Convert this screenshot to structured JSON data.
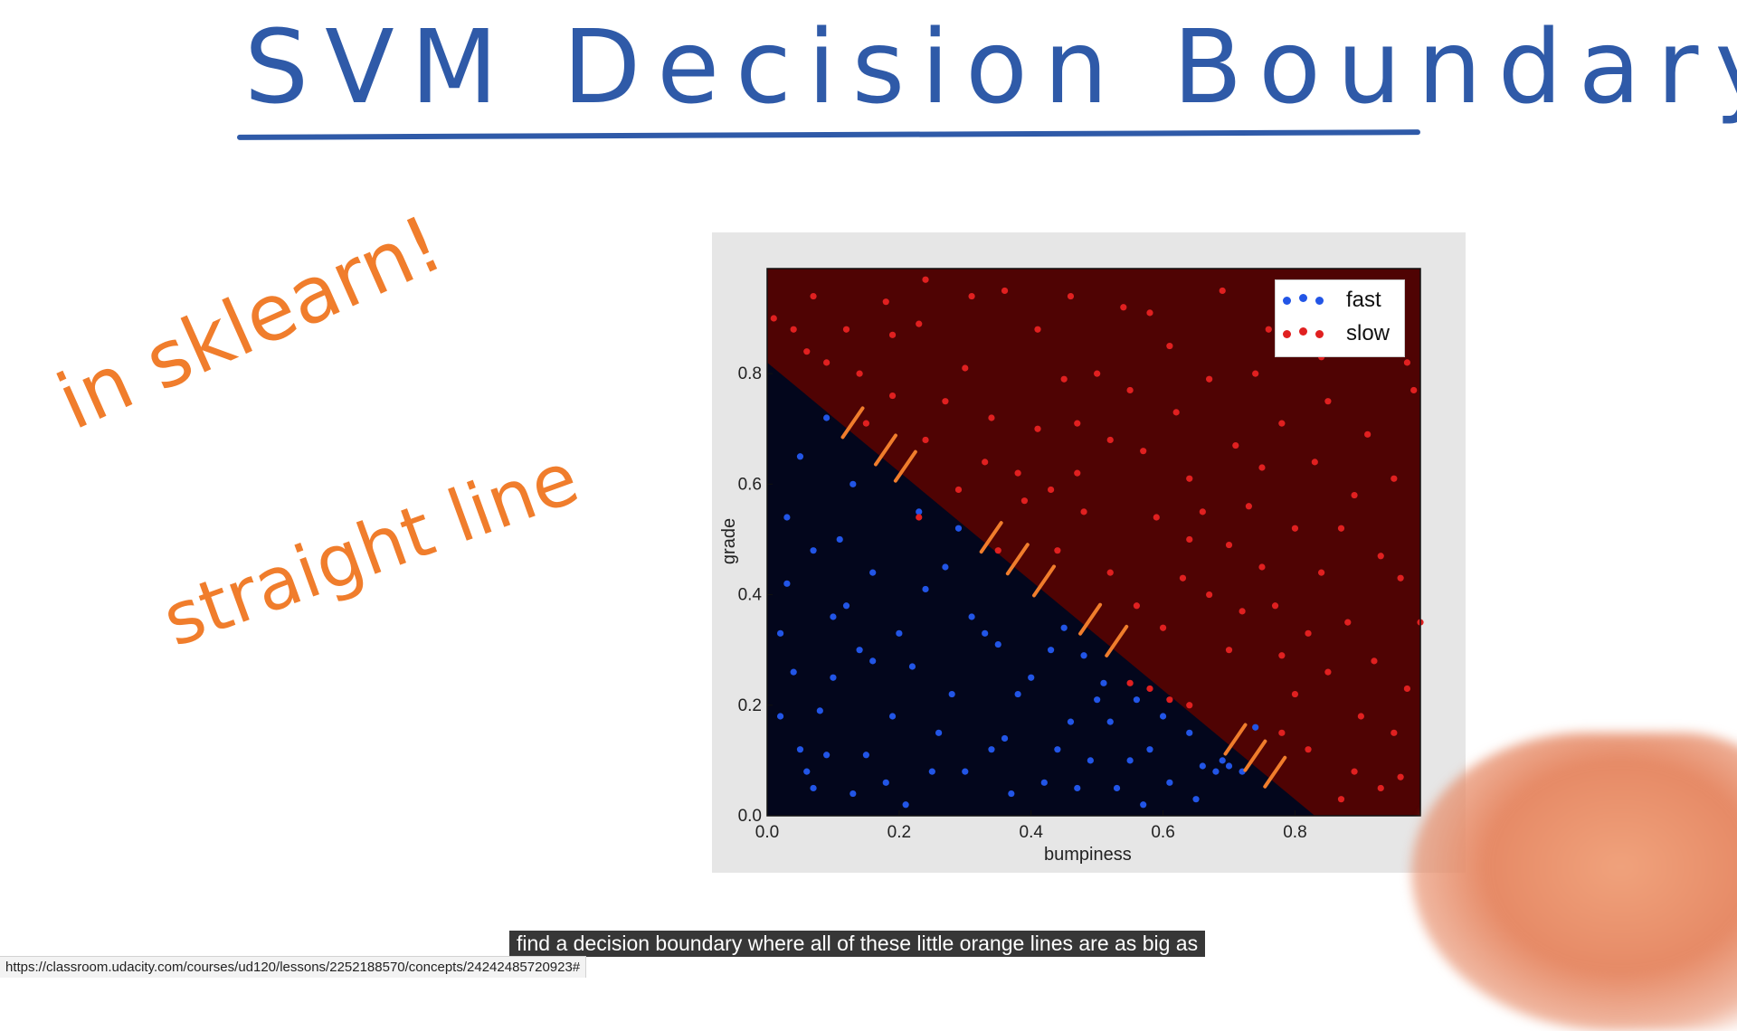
{
  "board": {
    "title": "SVM Decision Boundary",
    "note_sklearn": "in sklearn!",
    "note_line": "straight line",
    "title_color": "#2f5aa8",
    "note_color": "#f07d2c"
  },
  "video": {
    "caption": "find a decision boundary where all of these little orange lines are as big as"
  },
  "status_bar": {
    "url": "https://classroom.udacity.com/courses/ud120/lessons/2252188570/concepts/24242485720923#"
  },
  "chart_data": {
    "type": "scatter",
    "xlabel": "bumpiness",
    "ylabel": "grade",
    "xlim": [
      0.0,
      0.99
    ],
    "ylim": [
      0.0,
      0.99
    ],
    "x_ticks": [
      "0.0",
      "0.2",
      "0.4",
      "0.6",
      "0.8"
    ],
    "y_ticks": [
      "0.0",
      "0.2",
      "0.4",
      "0.6",
      "0.8"
    ],
    "decision_boundary": {
      "x": [
        0.0,
        0.83
      ],
      "y": [
        0.82,
        0.0
      ]
    },
    "regions": {
      "fast_color": "#03061c",
      "slow_color": "#4f0303"
    },
    "legend": {
      "position": "top-right"
    },
    "series": [
      {
        "name": "fast",
        "color": "#2255e6",
        "points": [
          [
            0.09,
            0.72
          ],
          [
            0.05,
            0.65
          ],
          [
            0.03,
            0.54
          ],
          [
            0.11,
            0.5
          ],
          [
            0.13,
            0.6
          ],
          [
            0.07,
            0.48
          ],
          [
            0.02,
            0.33
          ],
          [
            0.04,
            0.26
          ],
          [
            0.08,
            0.19
          ],
          [
            0.1,
            0.36
          ],
          [
            0.12,
            0.38
          ],
          [
            0.14,
            0.3
          ],
          [
            0.16,
            0.28
          ],
          [
            0.2,
            0.33
          ],
          [
            0.22,
            0.27
          ],
          [
            0.24,
            0.41
          ],
          [
            0.27,
            0.45
          ],
          [
            0.29,
            0.52
          ],
          [
            0.31,
            0.36
          ],
          [
            0.33,
            0.33
          ],
          [
            0.35,
            0.31
          ],
          [
            0.38,
            0.22
          ],
          [
            0.4,
            0.25
          ],
          [
            0.43,
            0.3
          ],
          [
            0.45,
            0.34
          ],
          [
            0.48,
            0.29
          ],
          [
            0.5,
            0.21
          ],
          [
            0.52,
            0.17
          ],
          [
            0.55,
            0.1
          ],
          [
            0.58,
            0.12
          ],
          [
            0.61,
            0.06
          ],
          [
            0.64,
            0.15
          ],
          [
            0.66,
            0.09
          ],
          [
            0.68,
            0.08
          ],
          [
            0.69,
            0.1
          ],
          [
            0.7,
            0.09
          ],
          [
            0.72,
            0.08
          ],
          [
            0.74,
            0.16
          ],
          [
            0.06,
            0.08
          ],
          [
            0.09,
            0.11
          ],
          [
            0.13,
            0.04
          ],
          [
            0.15,
            0.11
          ],
          [
            0.18,
            0.06
          ],
          [
            0.21,
            0.02
          ],
          [
            0.26,
            0.15
          ],
          [
            0.3,
            0.08
          ],
          [
            0.34,
            0.12
          ],
          [
            0.37,
            0.04
          ],
          [
            0.42,
            0.06
          ],
          [
            0.46,
            0.17
          ],
          [
            0.49,
            0.1
          ],
          [
            0.53,
            0.05
          ],
          [
            0.57,
            0.02
          ],
          [
            0.02,
            0.18
          ],
          [
            0.05,
            0.12
          ],
          [
            0.19,
            0.18
          ],
          [
            0.28,
            0.22
          ],
          [
            0.36,
            0.14
          ],
          [
            0.44,
            0.12
          ],
          [
            0.51,
            0.24
          ],
          [
            0.56,
            0.21
          ],
          [
            0.6,
            0.18
          ],
          [
            0.65,
            0.03
          ],
          [
            0.47,
            0.05
          ],
          [
            0.25,
            0.08
          ],
          [
            0.1,
            0.25
          ],
          [
            0.03,
            0.42
          ],
          [
            0.07,
            0.05
          ],
          [
            0.16,
            0.44
          ],
          [
            0.23,
            0.55
          ]
        ]
      },
      {
        "name": "slow",
        "color": "#e02020",
        "points": [
          [
            0.01,
            0.9
          ],
          [
            0.04,
            0.88
          ],
          [
            0.07,
            0.94
          ],
          [
            0.09,
            0.82
          ],
          [
            0.12,
            0.88
          ],
          [
            0.18,
            0.93
          ],
          [
            0.19,
            0.87
          ],
          [
            0.23,
            0.89
          ],
          [
            0.24,
            0.97
          ],
          [
            0.31,
            0.94
          ],
          [
            0.36,
            0.95
          ],
          [
            0.41,
            0.88
          ],
          [
            0.46,
            0.94
          ],
          [
            0.54,
            0.92
          ],
          [
            0.58,
            0.91
          ],
          [
            0.61,
            0.85
          ],
          [
            0.69,
            0.95
          ],
          [
            0.76,
            0.88
          ],
          [
            0.84,
            0.83
          ],
          [
            0.91,
            0.87
          ],
          [
            0.97,
            0.82
          ],
          [
            0.98,
            0.77
          ],
          [
            0.15,
            0.71
          ],
          [
            0.19,
            0.76
          ],
          [
            0.24,
            0.68
          ],
          [
            0.27,
            0.75
          ],
          [
            0.3,
            0.81
          ],
          [
            0.34,
            0.72
          ],
          [
            0.38,
            0.62
          ],
          [
            0.41,
            0.7
          ],
          [
            0.45,
            0.79
          ],
          [
            0.47,
            0.71
          ],
          [
            0.5,
            0.8
          ],
          [
            0.52,
            0.68
          ],
          [
            0.55,
            0.77
          ],
          [
            0.57,
            0.66
          ],
          [
            0.59,
            0.54
          ],
          [
            0.62,
            0.73
          ],
          [
            0.64,
            0.61
          ],
          [
            0.66,
            0.55
          ],
          [
            0.67,
            0.79
          ],
          [
            0.71,
            0.67
          ],
          [
            0.73,
            0.56
          ],
          [
            0.75,
            0.63
          ],
          [
            0.78,
            0.71
          ],
          [
            0.8,
            0.52
          ],
          [
            0.83,
            0.64
          ],
          [
            0.85,
            0.75
          ],
          [
            0.87,
            0.52
          ],
          [
            0.89,
            0.58
          ],
          [
            0.91,
            0.69
          ],
          [
            0.93,
            0.47
          ],
          [
            0.95,
            0.61
          ],
          [
            0.96,
            0.43
          ],
          [
            0.44,
            0.48
          ],
          [
            0.48,
            0.55
          ],
          [
            0.52,
            0.44
          ],
          [
            0.56,
            0.38
          ],
          [
            0.6,
            0.34
          ],
          [
            0.63,
            0.43
          ],
          [
            0.67,
            0.4
          ],
          [
            0.7,
            0.3
          ],
          [
            0.72,
            0.37
          ],
          [
            0.75,
            0.45
          ],
          [
            0.78,
            0.29
          ],
          [
            0.8,
            0.22
          ],
          [
            0.82,
            0.33
          ],
          [
            0.85,
            0.26
          ],
          [
            0.88,
            0.35
          ],
          [
            0.9,
            0.18
          ],
          [
            0.92,
            0.28
          ],
          [
            0.95,
            0.15
          ],
          [
            0.97,
            0.23
          ],
          [
            0.89,
            0.08
          ],
          [
            0.93,
            0.05
          ],
          [
            0.87,
            0.03
          ],
          [
            0.82,
            0.12
          ],
          [
            0.78,
            0.15
          ],
          [
            0.55,
            0.24
          ],
          [
            0.58,
            0.23
          ],
          [
            0.61,
            0.21
          ],
          [
            0.64,
            0.2
          ],
          [
            0.23,
            0.54
          ],
          [
            0.29,
            0.59
          ],
          [
            0.33,
            0.64
          ],
          [
            0.39,
            0.57
          ],
          [
            0.43,
            0.59
          ],
          [
            0.47,
            0.62
          ],
          [
            0.35,
            0.48
          ],
          [
            0.06,
            0.84
          ],
          [
            0.14,
            0.8
          ],
          [
            0.84,
            0.44
          ],
          [
            0.7,
            0.49
          ],
          [
            0.64,
            0.5
          ],
          [
            0.77,
            0.38
          ],
          [
            0.96,
            0.07
          ],
          [
            0.99,
            0.35
          ],
          [
            0.86,
            0.95
          ],
          [
            0.74,
            0.8
          ],
          [
            0.8,
            0.9
          ]
        ]
      }
    ]
  }
}
